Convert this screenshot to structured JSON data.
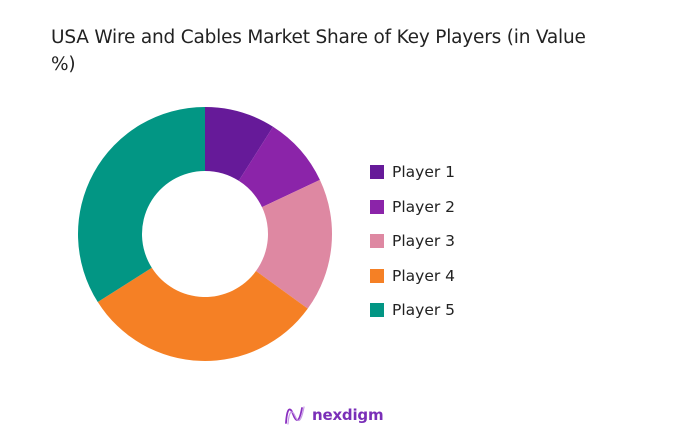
{
  "title": "USA Wire and Cables Market Share of Key Players (in Value %)",
  "brand": {
    "name": "nexdigm",
    "icon": "nexdigm-wave-logo-icon"
  },
  "chart_data": {
    "type": "pie",
    "variant": "donut",
    "title": "USA Wire and Cables Market Share of Key Players (in Value %)",
    "unit": "%",
    "categories": [
      "Player 1",
      "Player 2",
      "Player 3",
      "Player 4",
      "Player 5"
    ],
    "values": [
      9,
      9,
      17,
      31,
      34
    ],
    "colors": [
      "#661a99",
      "#8b24a9",
      "#de88a2",
      "#f58025",
      "#029684"
    ],
    "start_angle_deg": 0,
    "direction": "clockwise",
    "legend_position": "right",
    "data_labels": false
  },
  "legend": [
    {
      "label": "Player 1",
      "color": "#661a99"
    },
    {
      "label": "Player 2",
      "color": "#8b24a9"
    },
    {
      "label": "Player 3",
      "color": "#de88a2"
    },
    {
      "label": "Player 4",
      "color": "#f58025"
    },
    {
      "label": "Player 5",
      "color": "#029684"
    }
  ]
}
